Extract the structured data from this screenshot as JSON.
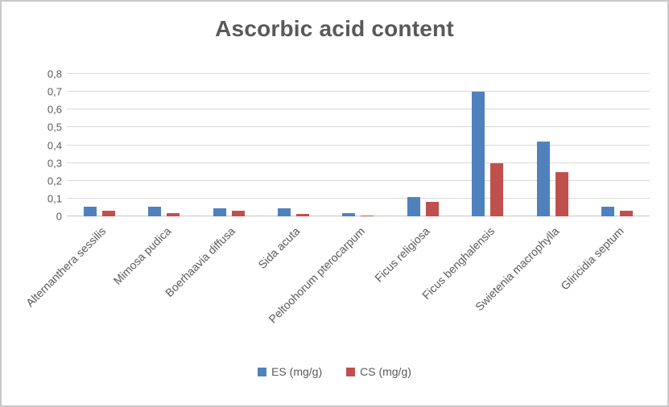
{
  "window": {
    "background": "#ffffff",
    "border_color": "#c9c9c9"
  },
  "chart": {
    "title": "Ascorbic acid content",
    "title_color": "#595959",
    "axis_text_color": "#595959",
    "gridline_color": "#d9d9d9",
    "legend_items": [
      {
        "label": "ES (mg/g)",
        "color": "#4f81bd"
      },
      {
        "label": "CS (mg/g)",
        "color": "#c0504d"
      }
    ]
  },
  "chart_data": {
    "type": "bar",
    "title": "Ascorbic acid content",
    "categories": [
      "Alternanthera sessilis",
      "Mimosa pudica",
      "Boerhaavia diffusa",
      "Sida acuta",
      "Peltoohorum pterocarpum",
      "Ficus religiosa",
      "Ficus benghalensis",
      "Swietenia macrophylla",
      "Gliricidia septum"
    ],
    "series": [
      {
        "name": "ES (mg/g)",
        "color": "#4f81bd",
        "values": [
          0.055,
          0.055,
          0.045,
          0.045,
          0.02,
          0.11,
          0.7,
          0.42,
          0.055
        ]
      },
      {
        "name": "CS (mg/g)",
        "color": "#c0504d",
        "values": [
          0.03,
          0.02,
          0.03,
          0.015,
          0.005,
          0.08,
          0.3,
          0.25,
          0.03
        ]
      }
    ],
    "xlabel": "",
    "ylabel": "",
    "ylim": [
      0,
      0.8
    ],
    "ytick_step": 0.1,
    "ytick_labels": [
      "0",
      "0,1",
      "0,2",
      "0,3",
      "0,4",
      "0,5",
      "0,6",
      "0,7",
      "0,8"
    ],
    "decimal_separator": ",",
    "grid": true,
    "legend_position": "bottom",
    "x_label_rotation_deg": 45
  }
}
